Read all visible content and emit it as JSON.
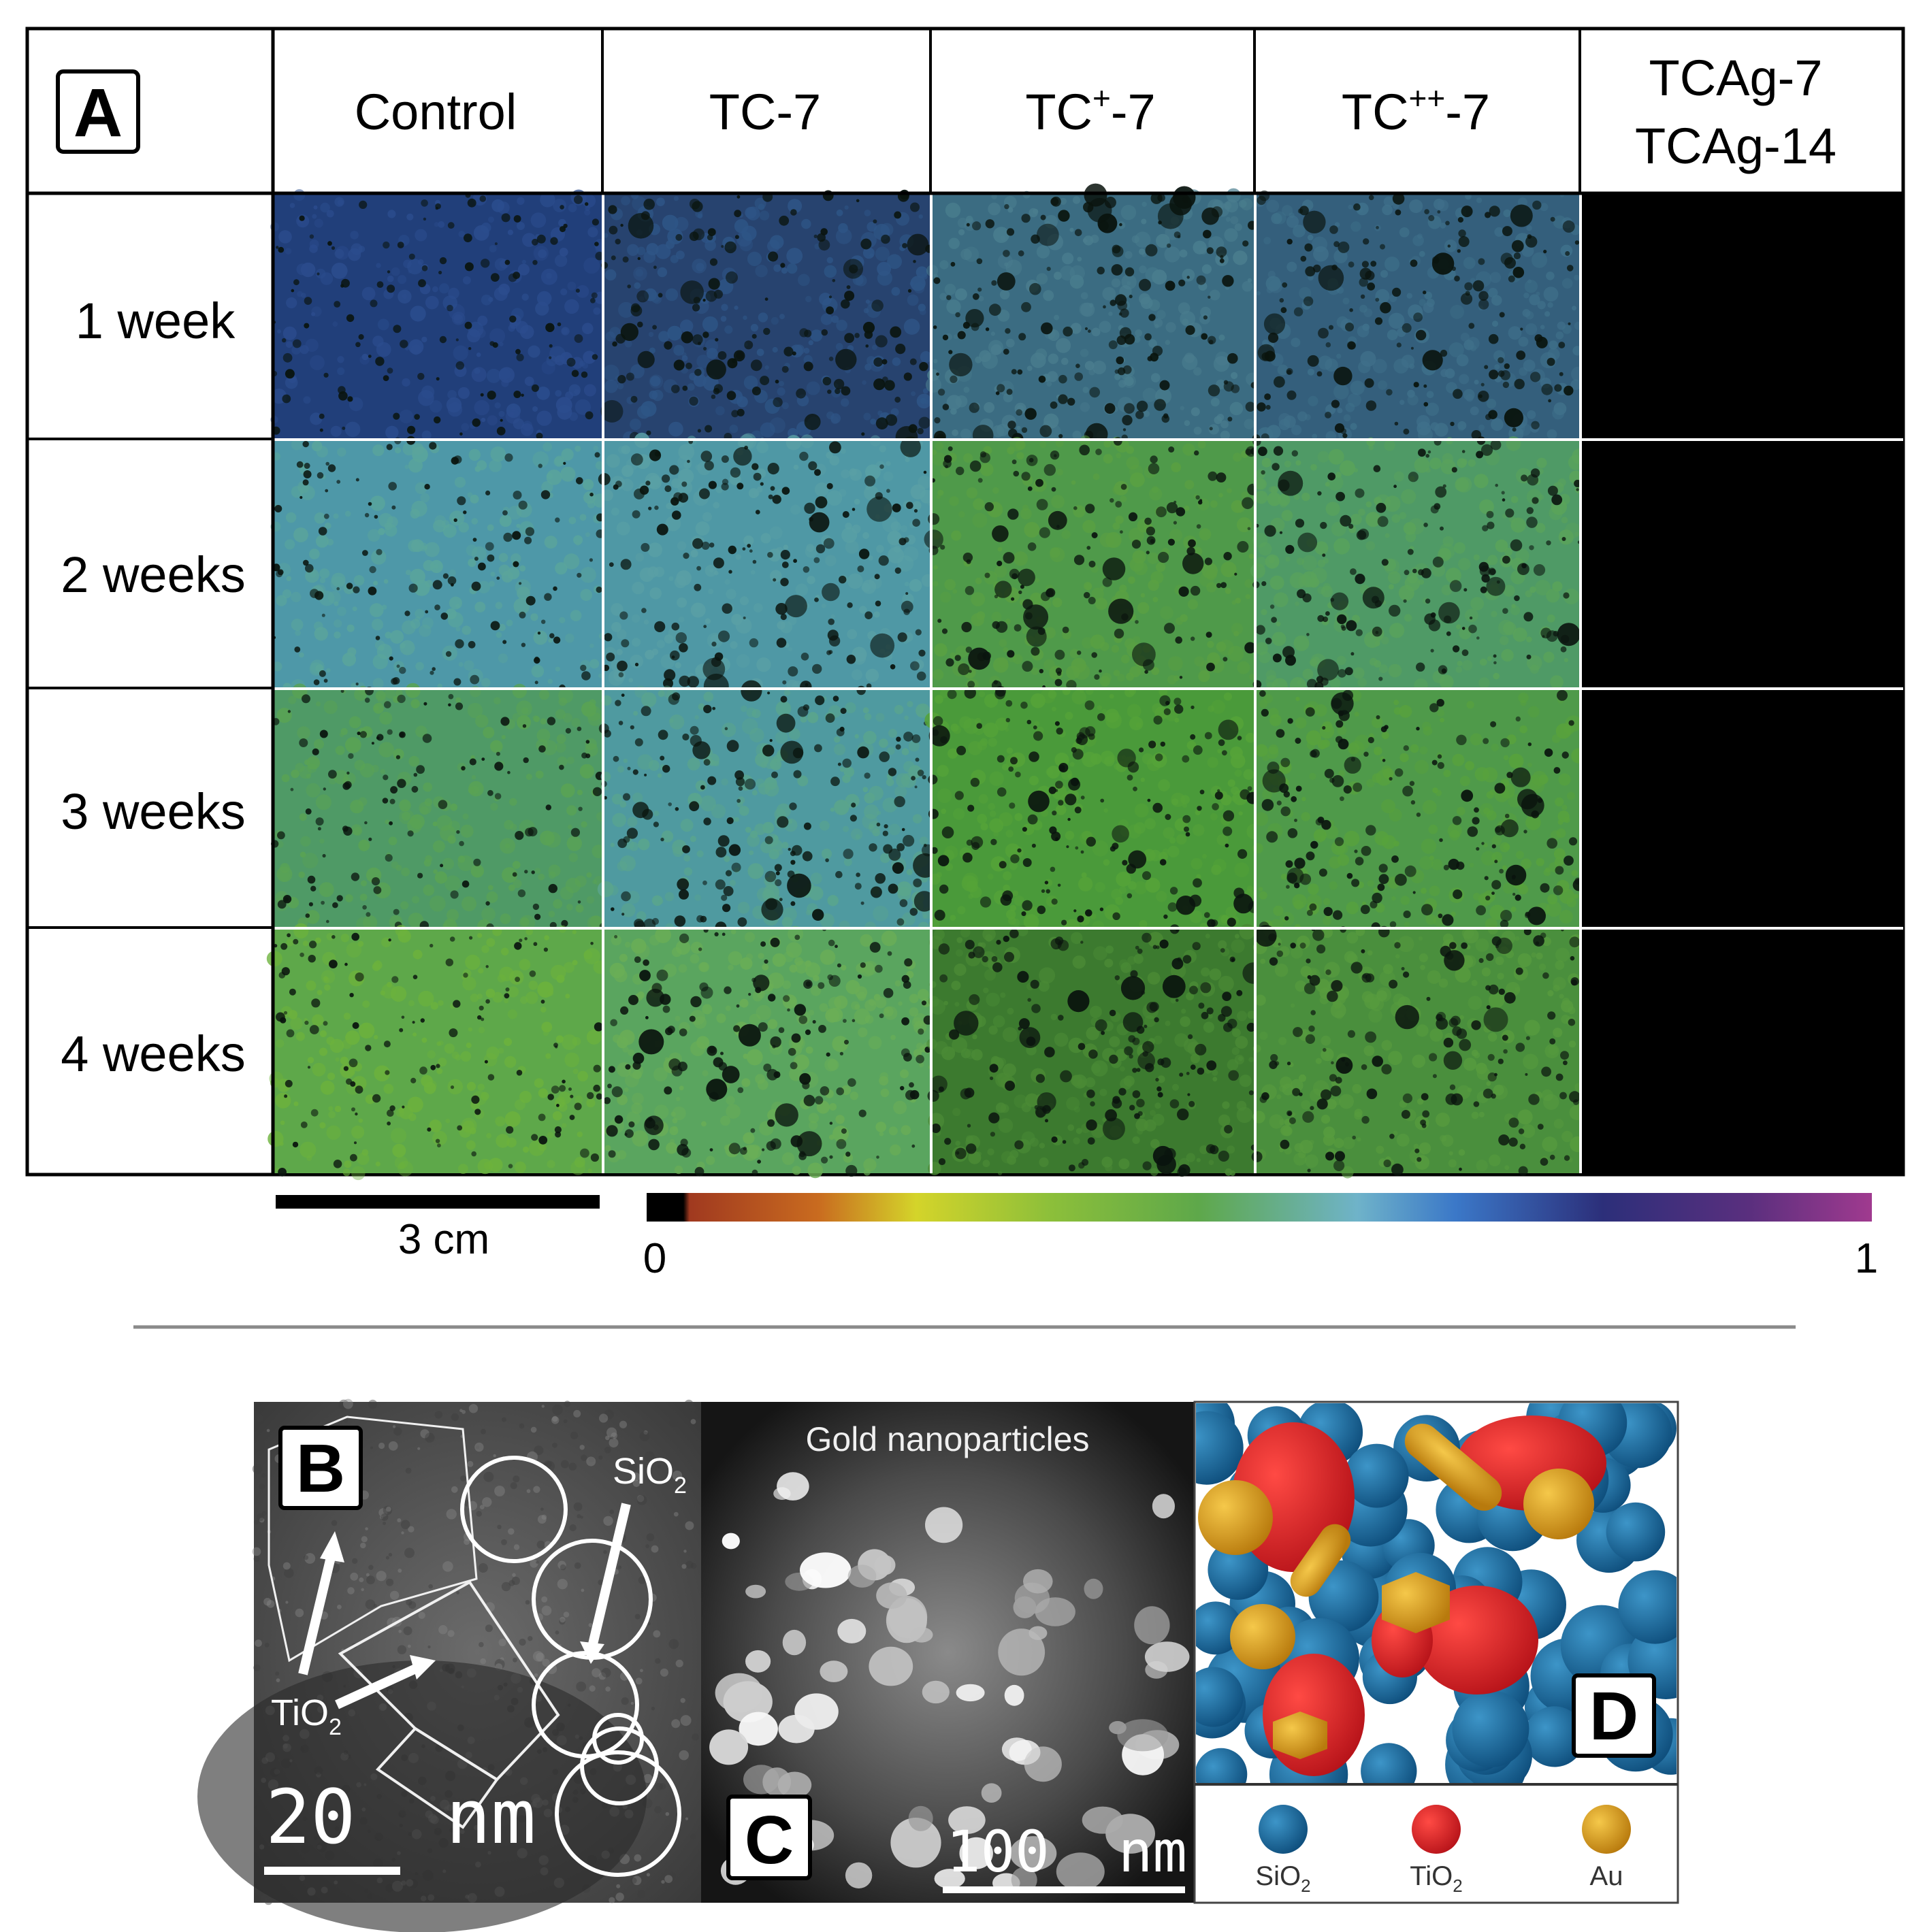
{
  "panel_a": {
    "label": "A",
    "columns": [
      "Control",
      "TC-7",
      "TC",
      "TC",
      "TCAg-7",
      "TCAg-14"
    ],
    "col_tc_plus_base": "TC",
    "col_tc_plus_sup": "+",
    "col_tc_plus_suffix": "-7",
    "col_tc_plusplus_base": "TC",
    "col_tc_plusplus_sup": "++",
    "col_tc_plusplus_suffix": "-7",
    "rows": [
      "1 week",
      "2 weeks",
      "3 weeks",
      "4 weeks"
    ],
    "scale_bar_label": "3 cm",
    "colorbar_min": "0",
    "colorbar_max": "1",
    "colorbar_colors": [
      "#000000",
      "#a0391f",
      "#c96b1f",
      "#d4d42a",
      "#8cbf3a",
      "#5ea84a",
      "#6fb3c9",
      "#3b78c8",
      "#2c2f7a",
      "#5a2f7e",
      "#a03a8f"
    ]
  },
  "panel_b": {
    "label": "B",
    "sio2_label": "SiO",
    "sio2_sub": "2",
    "tio2_label": "TiO",
    "tio2_sub": "2",
    "scale_bar_label": "20  nm"
  },
  "panel_c": {
    "label": "C",
    "title": "Gold nanoparticles",
    "scale_bar_label": "100  nm"
  },
  "panel_d": {
    "label": "D",
    "legend": [
      {
        "name": "SiO",
        "sub": "2",
        "color": "#1d6ea3"
      },
      {
        "name": "TiO",
        "sub": "2",
        "color": "#e8302a"
      },
      {
        "name": "Au",
        "sub": "",
        "color": "#e0a21c"
      }
    ]
  }
}
